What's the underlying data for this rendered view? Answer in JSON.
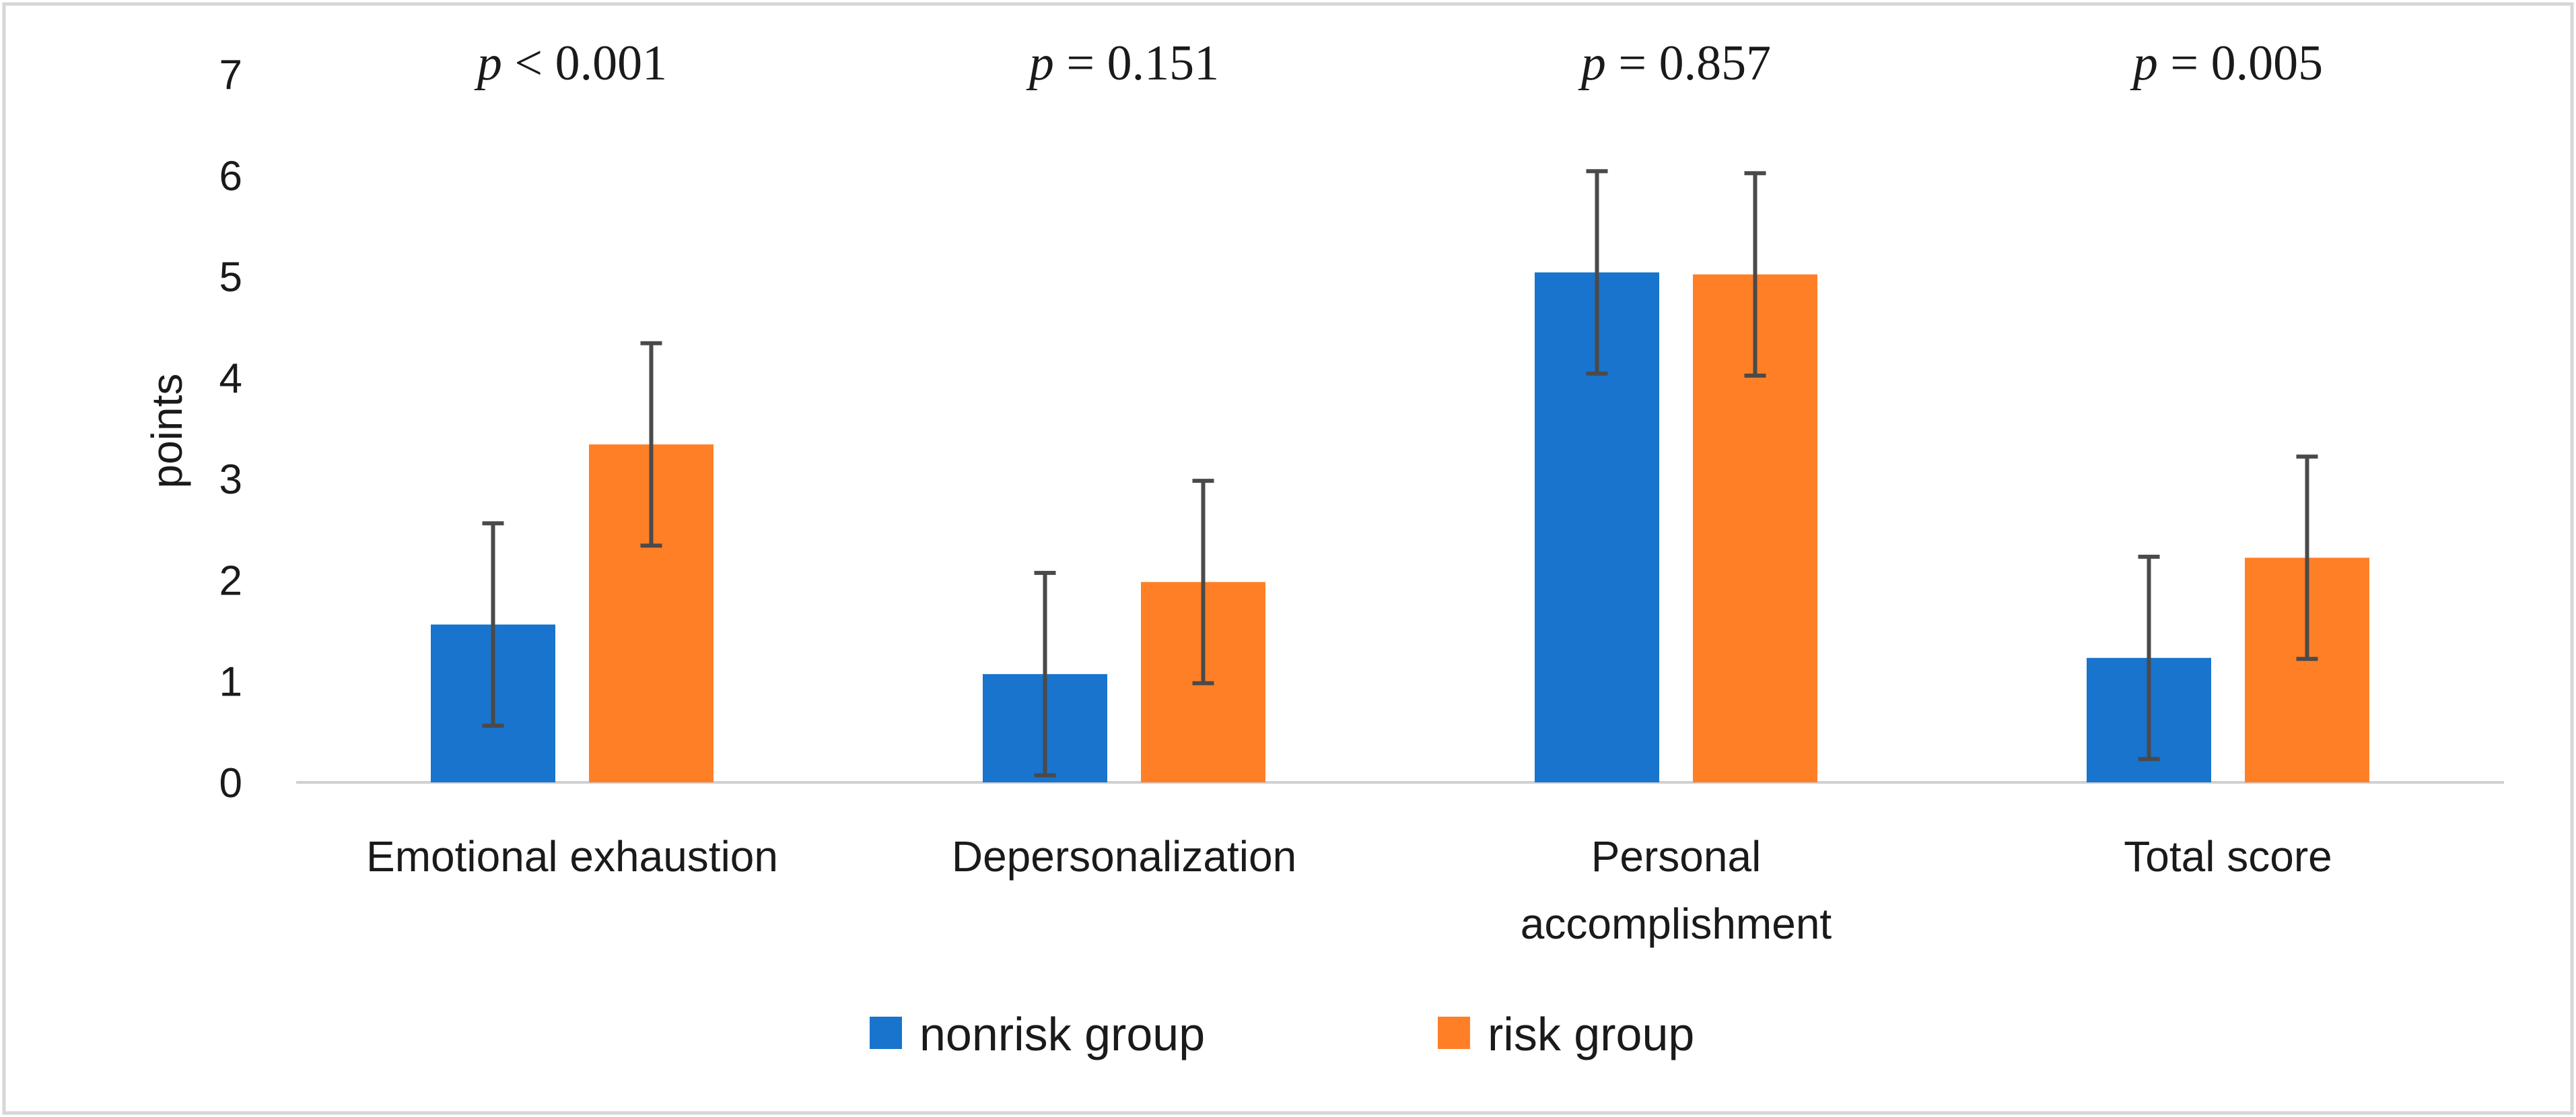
{
  "chart_data": {
    "type": "bar",
    "categories": [
      [
        "Emotional exhaustion"
      ],
      [
        "Depersonalization"
      ],
      [
        "Personal",
        "accomplishment"
      ],
      [
        "Total score"
      ]
    ],
    "series": [
      {
        "name": "nonrisk group",
        "color": "#1874CD",
        "values": [
          1.56,
          1.07,
          5.04,
          1.23
        ],
        "error": [
          1.0,
          1.0,
          1.0,
          1.0
        ]
      },
      {
        "name": "risk group",
        "color": "#FF7F27",
        "values": [
          3.34,
          1.98,
          5.02,
          2.22
        ],
        "error": [
          1.0,
          1.0,
          1.0,
          1.0
        ]
      }
    ],
    "annotations": [
      {
        "prefix": "p",
        "text": " < 0.001"
      },
      {
        "prefix": "p",
        "text": " = 0.151"
      },
      {
        "prefix": "p",
        "text": " = 0.857"
      },
      {
        "prefix": "p",
        "text": " = 0.005"
      }
    ],
    "ylabel": "points",
    "yticks": [
      "0",
      "1",
      "2",
      "3",
      "4",
      "5",
      "6",
      "7"
    ],
    "ylim": [
      0,
      7
    ],
    "grid": false,
    "legend_position": "bottom-center",
    "colors": {
      "axis": "#d0d0d0",
      "errorbar": "#4a4a4a",
      "border": "#d6d6d6"
    }
  }
}
